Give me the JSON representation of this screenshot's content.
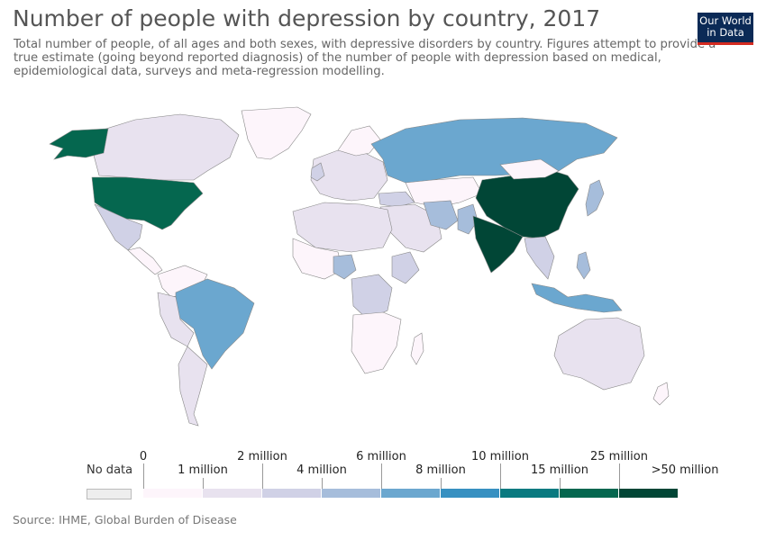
{
  "header": {
    "title": "Number of people with depression by country, 2017",
    "subtitle": "Total number of people, of all ages and both sexes, with depressive disorders by country. Figures attempt to provide a true estimate (going beyond reported diagnosis) of the number of people with depression based on medical, epidemiological data, surveys and meta-regression modelling.",
    "logo_line1": "Our World",
    "logo_line2": "in Data"
  },
  "map": {
    "region": "World",
    "year": "2017"
  },
  "legend": {
    "no_data_label": "No data",
    "no_data_color": "#eeeeee",
    "bin_colors": [
      "#fdf5fb",
      "#e8e2ef",
      "#d0d1e6",
      "#a6bddb",
      "#6ba7cf",
      "#3790c1",
      "#0a7a80",
      "#05674f",
      "#014636"
    ],
    "upper_labels": [
      "0",
      "2 million",
      "6 million",
      "10 million",
      "25 million"
    ],
    "lower_labels": [
      "1 million",
      "4 million",
      "8 million",
      "15 million",
      ">50 million"
    ]
  },
  "footer": {
    "source": "Source: IHME, Global Burden of Disease"
  }
}
